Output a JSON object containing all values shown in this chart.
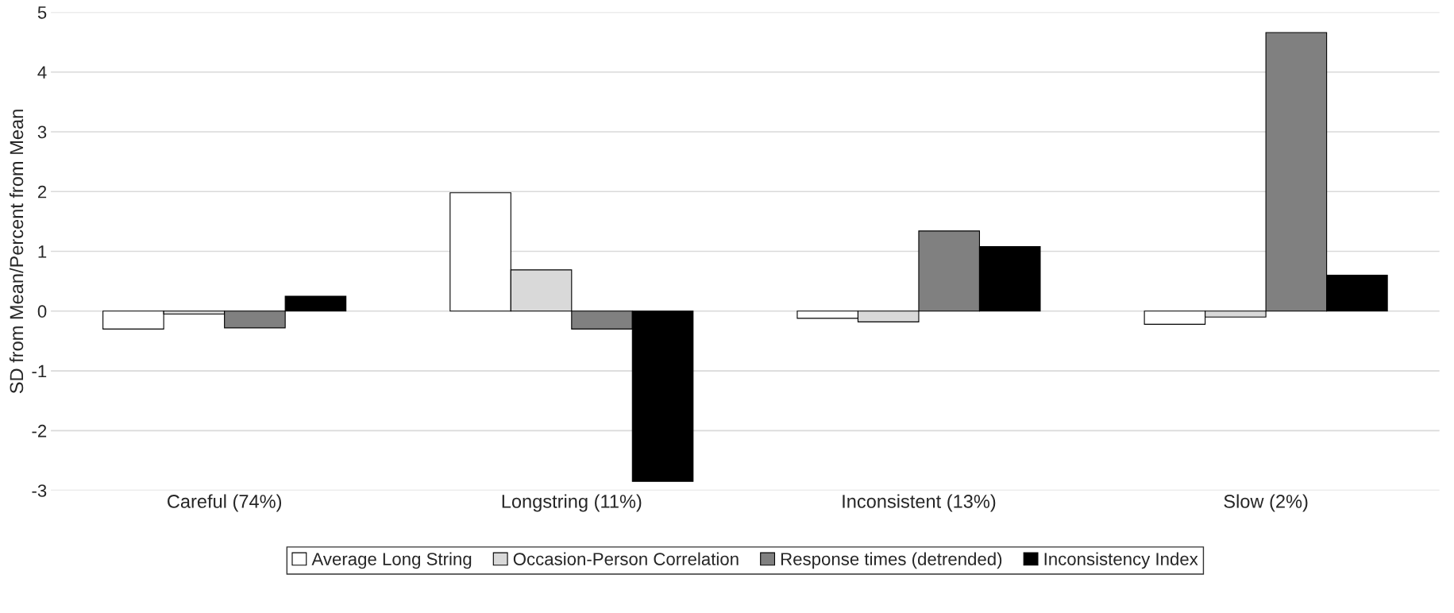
{
  "chart_data": {
    "type": "bar",
    "ylabel": "SD from Mean/Percent from Mean",
    "categories": [
      "Careful (74%)",
      "Longstring (11%)",
      "Inconsistent (13%)",
      "Slow (2%)"
    ],
    "series": [
      {
        "name": "Average Long String",
        "color": "#ffffff",
        "values": [
          -0.3,
          1.98,
          -0.12,
          -0.22
        ]
      },
      {
        "name": "Occasion-Person Correlation",
        "color": "#d9d9d9",
        "values": [
          -0.05,
          0.69,
          -0.18,
          -0.1
        ]
      },
      {
        "name": "Response times (detrended)",
        "color": "#808080",
        "values": [
          -0.28,
          -0.3,
          1.34,
          4.66
        ]
      },
      {
        "name": "Inconsistency Index",
        "color": "#000000",
        "values": [
          0.25,
          -2.85,
          1.08,
          0.6
        ]
      }
    ],
    "ylim": [
      -3,
      5
    ],
    "yticks": [
      -3,
      -2,
      -1,
      0,
      1,
      2,
      3,
      4,
      5
    ],
    "grid": "y",
    "legend": "bottom"
  }
}
